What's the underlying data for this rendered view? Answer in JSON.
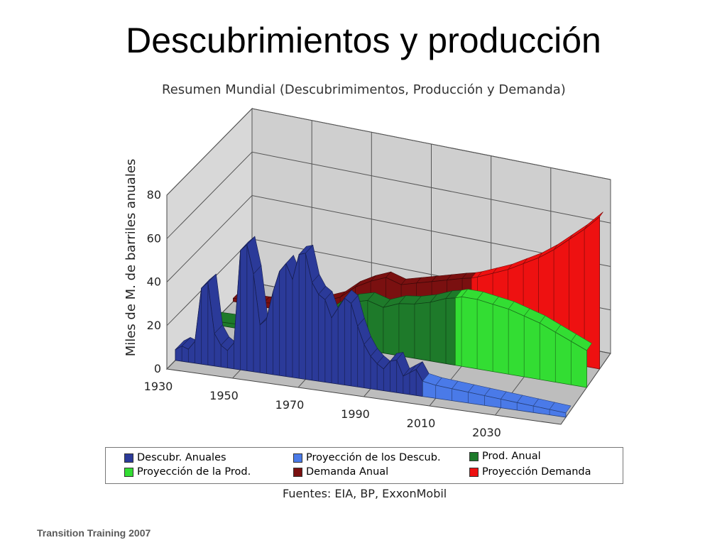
{
  "slide": {
    "title": "Descubrimientos y producción",
    "footer": "Transition Training 2007"
  },
  "chart_data": {
    "type": "area",
    "title": "Resumen Mundial (Descubrimimentos, Producción y Demanda)",
    "ylabel": "Miles de M. de barriles anuales",
    "xlabel": "",
    "ylim": [
      0,
      80
    ],
    "yticks": [
      0,
      20,
      40,
      60,
      80
    ],
    "xticks": [
      1930,
      1950,
      1970,
      1990,
      2010,
      2030
    ],
    "xlim": [
      1930,
      2050
    ],
    "grid": true,
    "legend_position": "bottom",
    "series": [
      {
        "name": "Descubr. Anuales",
        "color": "#2b3a99",
        "x": [
          1930,
          1932,
          1934,
          1936,
          1938,
          1940,
          1942,
          1944,
          1946,
          1948,
          1950,
          1952,
          1954,
          1956,
          1958,
          1960,
          1962,
          1964,
          1966,
          1968,
          1970,
          1972,
          1974,
          1976,
          1978,
          1980,
          1982,
          1984,
          1986,
          1988,
          1990,
          1992,
          1994,
          1996,
          1998,
          2000,
          2002,
          2004,
          2006
        ],
        "y": [
          5,
          7,
          6,
          10,
          35,
          38,
          15,
          10,
          8,
          12,
          55,
          58,
          45,
          22,
          25,
          38,
          48,
          52,
          45,
          57,
          58,
          45,
          40,
          38,
          30,
          35,
          40,
          38,
          28,
          20,
          15,
          12,
          10,
          14,
          15,
          8,
          10,
          12,
          7
        ]
      },
      {
        "name": "Proyección de los Descub.",
        "color": "#4a7ae8",
        "x": [
          2006,
          2010,
          2015,
          2020,
          2025,
          2030,
          2035,
          2040,
          2045,
          2050
        ],
        "y": [
          7,
          6,
          5.5,
          5,
          4.5,
          4,
          3.5,
          3,
          2.5,
          2
        ]
      },
      {
        "name": "Prod. Anual",
        "color": "#1e7a2a",
        "x": [
          1930,
          1940,
          1950,
          1960,
          1965,
          1970,
          1975,
          1980,
          1985,
          1990,
          1995,
          2000,
          2005,
          2008
        ],
        "y": [
          1.5,
          2,
          4,
          8,
          11,
          17,
          21,
          23,
          21,
          24,
          25,
          27,
          30,
          31
        ]
      },
      {
        "name": "Proyección de la Prod.",
        "color": "#33dd33",
        "x": [
          2008,
          2010,
          2015,
          2020,
          2025,
          2030,
          2035,
          2040,
          2045,
          2050
        ],
        "y": [
          31,
          32,
          32,
          31,
          30,
          28,
          26,
          23,
          20,
          17
        ]
      },
      {
        "name": "Demanda Anual",
        "color": "#7a1010",
        "x": [
          1930,
          1940,
          1950,
          1960,
          1965,
          1970,
          1975,
          1980,
          1985,
          1990,
          1995,
          2000,
          2005,
          2008
        ],
        "y": [
          1.5,
          2,
          4,
          8,
          11,
          17,
          21,
          24,
          22,
          24,
          26,
          28,
          30,
          31
        ]
      },
      {
        "name": "Proyección Demanda",
        "color": "#ee1111",
        "x": [
          2008,
          2010,
          2015,
          2020,
          2025,
          2030,
          2035,
          2040,
          2045,
          2050
        ],
        "y": [
          31,
          32,
          35,
          38,
          42,
          46,
          51,
          57,
          63,
          70
        ]
      }
    ],
    "sources": "Fuentes: EIA, BP, ExxonMobil"
  }
}
